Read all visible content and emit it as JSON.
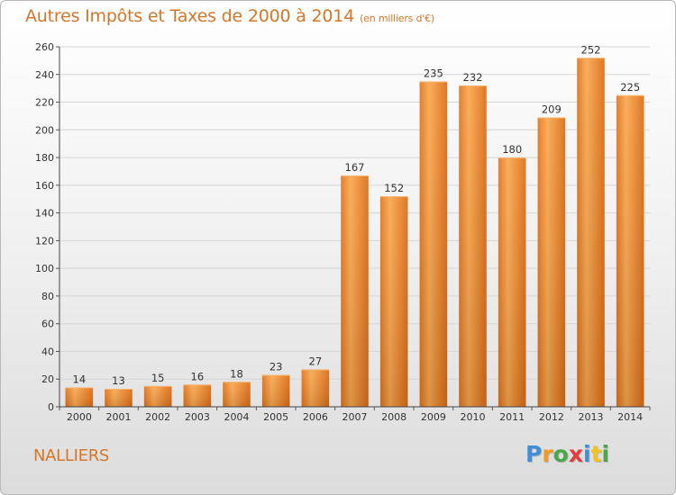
{
  "header": {
    "title": "Autres Impôts et Taxes de 2000 à 2014",
    "subtitle": "(en milliers d'€)"
  },
  "footer": {
    "commune": "NALLIERS",
    "logo": {
      "letters": [
        "P",
        "r",
        "o",
        "x",
        "i",
        "t",
        "i"
      ],
      "colors": [
        "#3f8fd8",
        "#f29b22",
        "#4aa84a",
        "#e23c3c",
        "#3f8fd8",
        "#f2c21e",
        "#4aa84a"
      ]
    }
  },
  "chart_data": {
    "type": "bar",
    "categories": [
      "2000",
      "2001",
      "2002",
      "2003",
      "2004",
      "2005",
      "2006",
      "2007",
      "2008",
      "2009",
      "2010",
      "2011",
      "2012",
      "2013",
      "2014"
    ],
    "values": [
      14,
      13,
      15,
      16,
      18,
      23,
      27,
      167,
      152,
      235,
      232,
      180,
      209,
      252,
      225
    ],
    "ylim": [
      0,
      260
    ],
    "yticks": [
      0,
      20,
      40,
      60,
      80,
      100,
      120,
      140,
      160,
      180,
      200,
      220,
      240,
      260
    ],
    "xlabel": "",
    "ylabel": "",
    "grid": true,
    "bar_color": "#ef8a2c",
    "data_labels": true
  }
}
